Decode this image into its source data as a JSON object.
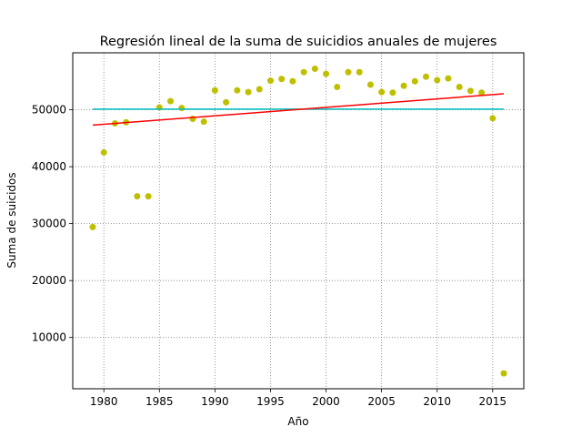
{
  "chart_data": {
    "type": "scatter",
    "title": "Regresión lineal de la suma de suicidios anuales de mujeres",
    "xlabel": "Año",
    "ylabel": "Suma de suicidos",
    "xlim": [
      1977.2,
      2017.8
    ],
    "ylim": [
      1000,
      60000
    ],
    "xticks": [
      1980,
      1985,
      1990,
      1995,
      2000,
      2005,
      2010,
      2015
    ],
    "yticks": [
      10000,
      20000,
      30000,
      40000,
      50000
    ],
    "grid": true,
    "colors": {
      "points": "#bfbf00",
      "regression": "#ff0000",
      "mean": "#00bfbf",
      "grid": "#808080"
    },
    "points": [
      [
        1979,
        29400
      ],
      [
        1980,
        42500
      ],
      [
        1981,
        47600
      ],
      [
        1982,
        47800
      ],
      [
        1983,
        34800
      ],
      [
        1984,
        34800
      ],
      [
        1985,
        50400
      ],
      [
        1986,
        51500
      ],
      [
        1987,
        50300
      ],
      [
        1988,
        48400
      ],
      [
        1989,
        47900
      ],
      [
        1990,
        53400
      ],
      [
        1991,
        51300
      ],
      [
        1992,
        53400
      ],
      [
        1993,
        53100
      ],
      [
        1994,
        53600
      ],
      [
        1995,
        55100
      ],
      [
        1996,
        55400
      ],
      [
        1997,
        55000
      ],
      [
        1998,
        56600
      ],
      [
        1999,
        57200
      ],
      [
        2000,
        56300
      ],
      [
        2001,
        54000
      ],
      [
        2002,
        56600
      ],
      [
        2003,
        56600
      ],
      [
        2004,
        54400
      ],
      [
        2005,
        53100
      ],
      [
        2006,
        53000
      ],
      [
        2007,
        54200
      ],
      [
        2008,
        55000
      ],
      [
        2009,
        55800
      ],
      [
        2010,
        55200
      ],
      [
        2011,
        55500
      ],
      [
        2012,
        54000
      ],
      [
        2013,
        53300
      ],
      [
        2014,
        53000
      ],
      [
        2015,
        48500
      ],
      [
        2016,
        3700
      ]
    ],
    "regression_line": [
      [
        1979,
        47300
      ],
      [
        2016,
        52800
      ]
    ],
    "mean_line": [
      [
        1979,
        50100
      ],
      [
        2016,
        50100
      ]
    ]
  }
}
